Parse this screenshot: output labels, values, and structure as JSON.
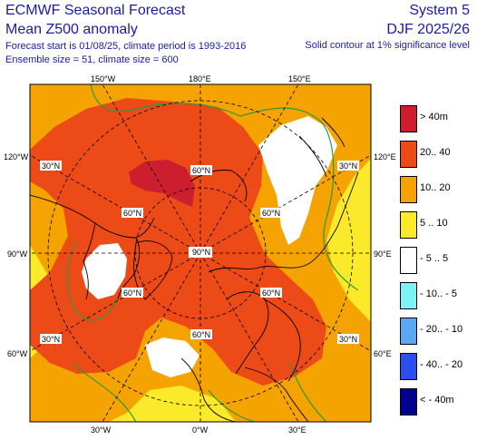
{
  "header": {
    "title_line1": "ECMWF Seasonal Forecast",
    "title_line2": "Mean Z500 anomaly",
    "forecast_info": "Forecast start is 01/08/25, climate period is 1993-2016",
    "ensemble_info": "Ensemble size = 51, climate size = 600",
    "system": "System 5",
    "season": "DJF 2025/26",
    "significance": "Solid contour at 1% significance level"
  },
  "map": {
    "projection": "north-polar-stereographic",
    "meridian_labels": {
      "top_left": "150°W",
      "top_center": "180°E",
      "top_right": "150°E",
      "left_top": "120°W",
      "right_top": "120°E",
      "left_mid": "90°W",
      "right_mid": "90°E",
      "left_bottom": "60°W",
      "right_bottom": "60°E",
      "bottom_left": "30°W",
      "bottom_center": "0°W",
      "bottom_right": "30°E"
    },
    "latitude_labels": [
      "30°N",
      "60°N",
      "90°N"
    ],
    "colors": {
      "gt40": "#cc1e2e",
      "20_40": "#ec4a16",
      "10_20": "#f5a300",
      "5_10": "#fbea2a",
      "neutral": "#ffffff",
      "sig_contour": "#2e9a3f",
      "coast": "#000000"
    }
  },
  "legend": [
    {
      "label": "> 40m",
      "color": "#cc1e2e"
    },
    {
      "label": "20.. 40",
      "color": "#ec4a16"
    },
    {
      "label": "10.. 20",
      "color": "#f5a300"
    },
    {
      "label": "5 .. 10",
      "color": "#fbea2a"
    },
    {
      "label": "- 5 .. 5",
      "color": "#ffffff"
    },
    {
      "label": "- 10.. - 5",
      "color": "#7ef3f6"
    },
    {
      "label": "- 20.. - 10",
      "color": "#5aa7f2"
    },
    {
      "label": "- 40.. - 20",
      "color": "#2b4ef0"
    },
    {
      "label": "< - 40m",
      "color": "#00008f"
    }
  ]
}
